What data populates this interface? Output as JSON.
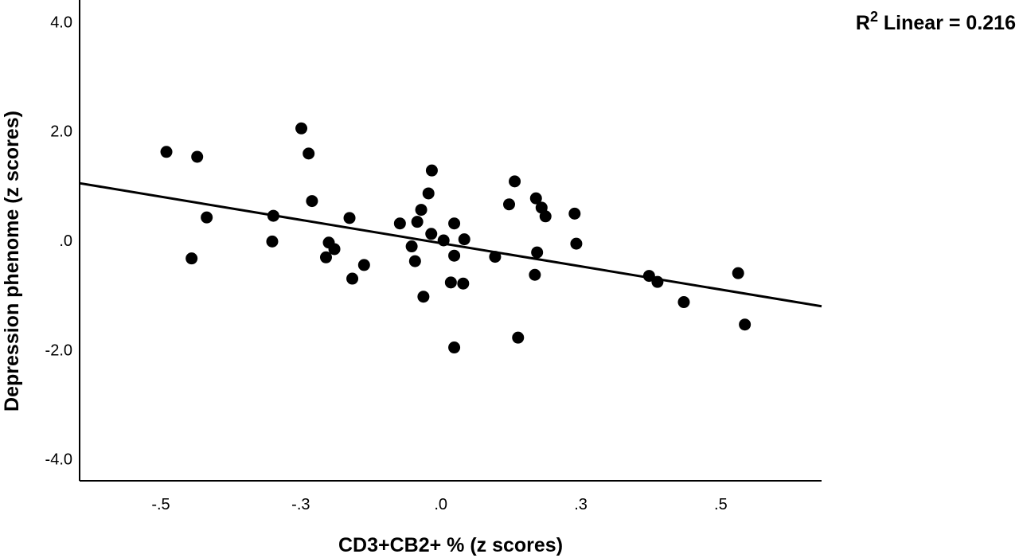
{
  "chart_data": {
    "type": "scatter",
    "xlabel": "CD3+CB2+ % (z scores)",
    "ylabel": "Depression phenome (z scores)",
    "xlim": [
      -0.645,
      0.68
    ],
    "ylim": [
      -4.4,
      4.4
    ],
    "x_ticks": [
      {
        "value": -0.5,
        "label": "-.5"
      },
      {
        "value": -0.25,
        "label": "-.3"
      },
      {
        "value": 0.0,
        "label": ".0"
      },
      {
        "value": 0.25,
        "label": ".3"
      },
      {
        "value": 0.5,
        "label": ".5"
      }
    ],
    "y_ticks": [
      {
        "value": 4.0,
        "label": "4.0"
      },
      {
        "value": 2.0,
        "label": "2.0"
      },
      {
        "value": 0.0,
        "label": ".0"
      },
      {
        "value": -2.0,
        "label": "-2.0"
      },
      {
        "value": -4.0,
        "label": "-4.0"
      }
    ],
    "points": [
      {
        "x": -0.49,
        "y": 1.62
      },
      {
        "x": -0.435,
        "y": 1.53
      },
      {
        "x": -0.445,
        "y": -0.33
      },
      {
        "x": -0.418,
        "y": 0.42
      },
      {
        "x": -0.299,
        "y": 0.45
      },
      {
        "x": -0.301,
        "y": -0.02
      },
      {
        "x": -0.249,
        "y": 2.05
      },
      {
        "x": -0.236,
        "y": 1.59
      },
      {
        "x": -0.23,
        "y": 0.72
      },
      {
        "x": -0.2,
        "y": -0.04
      },
      {
        "x": -0.19,
        "y": -0.16
      },
      {
        "x": -0.205,
        "y": -0.31
      },
      {
        "x": -0.163,
        "y": 0.41
      },
      {
        "x": -0.158,
        "y": -0.7
      },
      {
        "x": -0.137,
        "y": -0.45
      },
      {
        "x": -0.073,
        "y": 0.31
      },
      {
        "x": -0.052,
        "y": -0.11
      },
      {
        "x": -0.046,
        "y": -0.38
      },
      {
        "x": -0.042,
        "y": 0.34
      },
      {
        "x": -0.035,
        "y": 0.56
      },
      {
        "x": -0.031,
        "y": -1.03
      },
      {
        "x": -0.022,
        "y": 0.86
      },
      {
        "x": -0.016,
        "y": 1.28
      },
      {
        "x": -0.017,
        "y": 0.12
      },
      {
        "x": 0.005,
        "y": 0.0
      },
      {
        "x": 0.018,
        "y": -0.77
      },
      {
        "x": 0.024,
        "y": -0.28
      },
      {
        "x": 0.024,
        "y": 0.31
      },
      {
        "x": 0.024,
        "y": -1.96
      },
      {
        "x": 0.04,
        "y": -0.79
      },
      {
        "x": 0.042,
        "y": 0.02
      },
      {
        "x": 0.097,
        "y": -0.3
      },
      {
        "x": 0.122,
        "y": 0.66
      },
      {
        "x": 0.132,
        "y": 1.08
      },
      {
        "x": 0.138,
        "y": -1.78
      },
      {
        "x": 0.168,
        "y": -0.63
      },
      {
        "x": 0.17,
        "y": 0.77
      },
      {
        "x": 0.172,
        "y": -0.22
      },
      {
        "x": 0.18,
        "y": 0.6
      },
      {
        "x": 0.187,
        "y": 0.44
      },
      {
        "x": 0.239,
        "y": 0.49
      },
      {
        "x": 0.242,
        "y": -0.06
      },
      {
        "x": 0.372,
        "y": -0.65
      },
      {
        "x": 0.387,
        "y": -0.76
      },
      {
        "x": 0.434,
        "y": -1.13
      },
      {
        "x": 0.531,
        "y": -0.6
      },
      {
        "x": 0.543,
        "y": -1.54
      }
    ],
    "fit_line": {
      "type": "linear",
      "intercept": -0.05,
      "slope": -1.7
    },
    "annotation": {
      "r_label": "R",
      "r_superscript": "2",
      "text": " Linear = 0.216"
    },
    "grid": false,
    "legend": false
  }
}
